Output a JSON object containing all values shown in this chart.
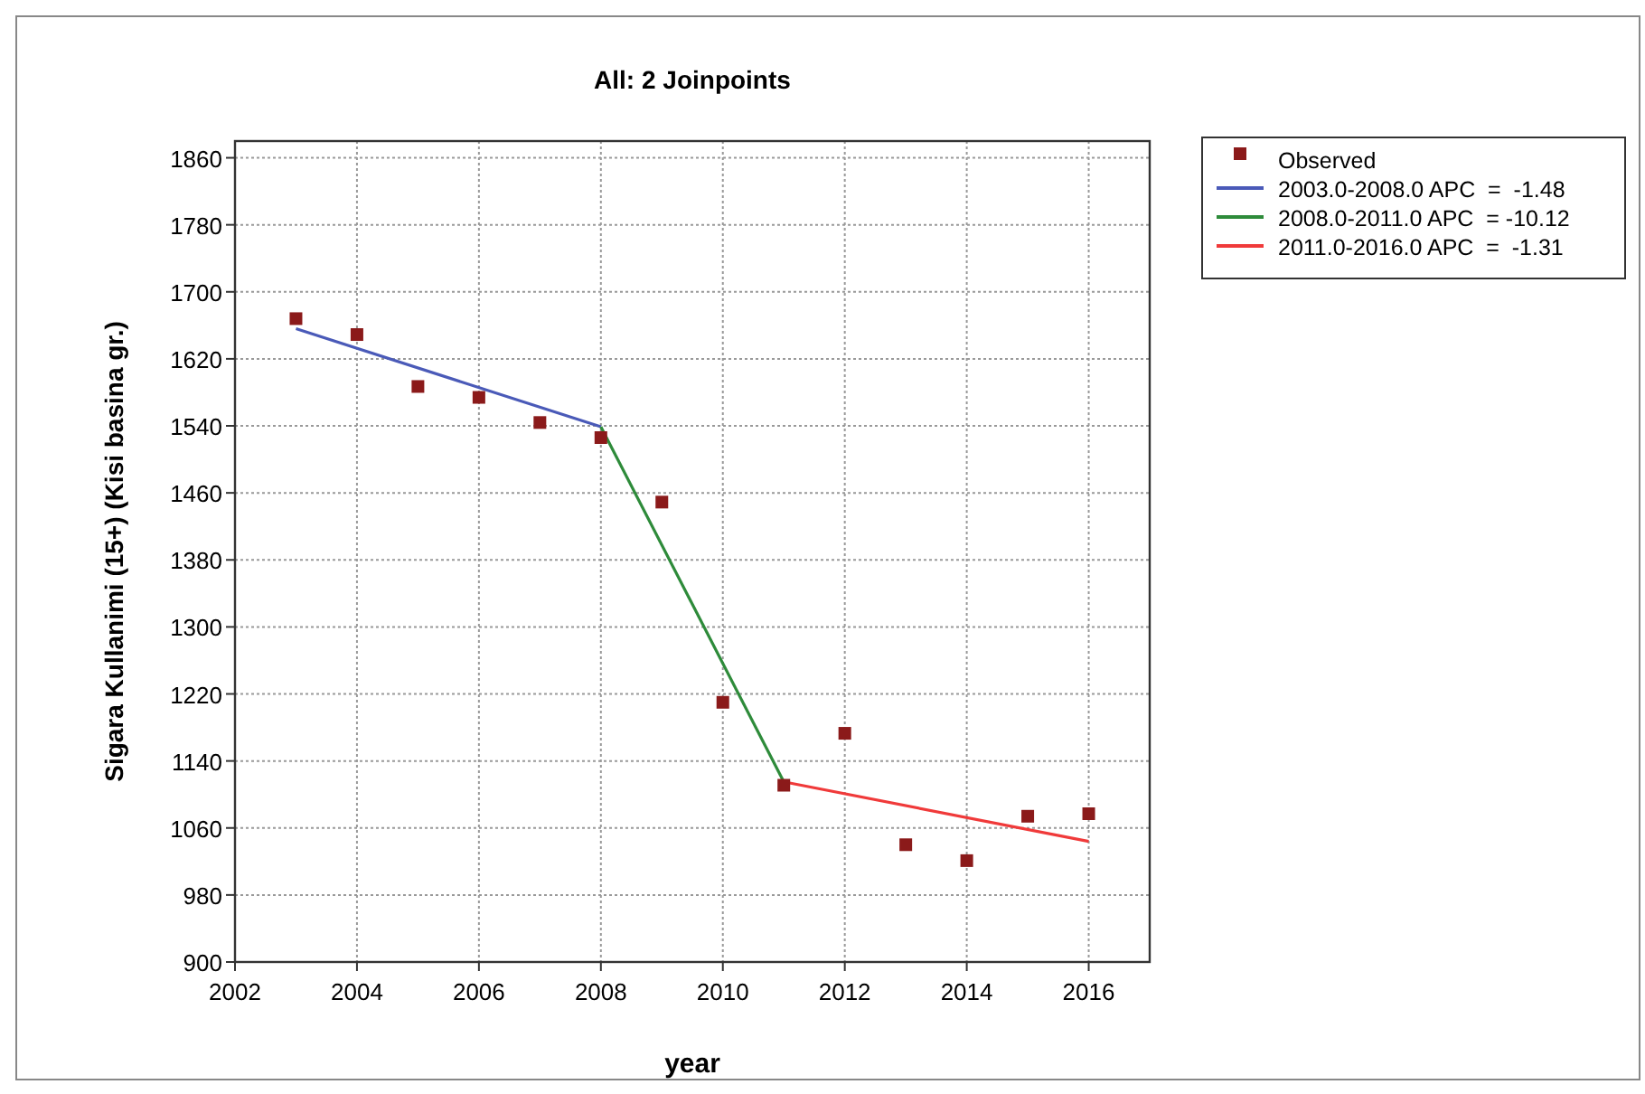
{
  "chart_data": {
    "type": "scatter",
    "title": "All: 2 Joinpoints",
    "xlabel": "year",
    "ylabel": "Sigara Kullanimi (15+) (Kisi basina gr.)",
    "x": [
      2003,
      2004,
      2005,
      2006,
      2007,
      2008,
      2009,
      2010,
      2011,
      2012,
      2013,
      2014,
      2015,
      2016
    ],
    "series": [
      {
        "name": "Observed",
        "marker": "square",
        "color": "#8b1a1a",
        "values": [
          1668,
          1649,
          1587,
          1574,
          1544,
          1526,
          1449,
          1210,
          1111,
          1173,
          1040,
          1021,
          1074,
          1077
        ]
      },
      {
        "name": "2003.0-2008.0 APC  =  -1.48",
        "type": "line",
        "color": "#4a5ab8",
        "x": [
          2003,
          2008
        ],
        "values": [
          1656,
          1539
        ]
      },
      {
        "name": "2008.0-2011.0 APC  = -10.12",
        "type": "line",
        "color": "#2e8b3a",
        "x": [
          2008,
          2011
        ],
        "values": [
          1539,
          1115
        ]
      },
      {
        "name": "2011.0-2016.0 APC  =  -1.31",
        "type": "line",
        "color": "#f03a3a",
        "x": [
          2011,
          2016
        ],
        "values": [
          1115,
          1044
        ]
      }
    ],
    "xlim": [
      2002,
      2017
    ],
    "xticks": [
      2002,
      2004,
      2006,
      2008,
      2010,
      2012,
      2014,
      2016
    ],
    "ylim": [
      900,
      1880
    ],
    "yticks": [
      900,
      980,
      1060,
      1140,
      1220,
      1300,
      1380,
      1460,
      1540,
      1620,
      1700,
      1780,
      1860
    ],
    "grid": true,
    "legend": "top right"
  }
}
